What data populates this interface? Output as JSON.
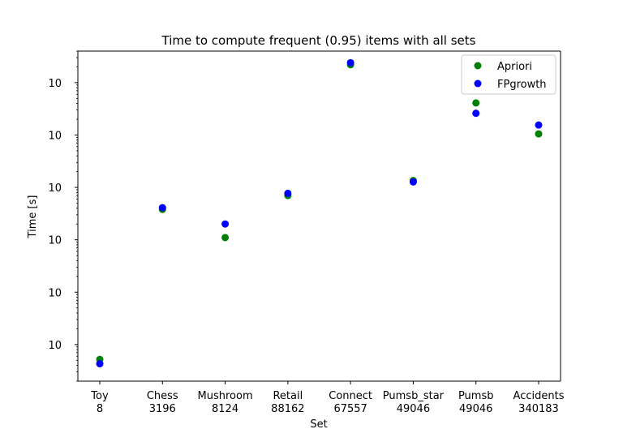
{
  "chart_data": {
    "type": "scatter",
    "title": "Time to compute frequent (0.95) items with all sets",
    "xlabel": "Set",
    "ylabel": "Time [s]",
    "yscale": "log",
    "ylim": [
      0.0002,
      400
    ],
    "y_ticks": [
      {
        "value": 0.001,
        "base": "10",
        "exp": "−3"
      },
      {
        "value": 0.01,
        "base": "10",
        "exp": "−2"
      },
      {
        "value": 0.1,
        "base": "10",
        "exp": "−1"
      },
      {
        "value": 1,
        "base": "10",
        "exp": "0"
      },
      {
        "value": 10,
        "base": "10",
        "exp": "1"
      },
      {
        "value": 100,
        "base": "10",
        "exp": "2"
      }
    ],
    "categories": [
      {
        "name": "Toy",
        "size": "8"
      },
      {
        "name": "Chess",
        "size": "3196"
      },
      {
        "name": "Mushroom",
        "size": "8124"
      },
      {
        "name": "Retail",
        "size": "88162"
      },
      {
        "name": "Connect",
        "size": "67557"
      },
      {
        "name": "Pumsb_star",
        "size": "49046"
      },
      {
        "name": "Pumsb",
        "size": "49046"
      },
      {
        "name": "Accidents",
        "size": "340183"
      }
    ],
    "series": [
      {
        "name": "Apriori",
        "color": "#008000",
        "values": [
          0.00052,
          0.38,
          0.11,
          0.7,
          220,
          1.35,
          41,
          10.5
        ]
      },
      {
        "name": "FPgrowth",
        "color": "#0000ff",
        "values": [
          0.00043,
          0.41,
          0.2,
          0.77,
          240,
          1.27,
          26,
          15.5
        ]
      }
    ],
    "grid": false,
    "legend_position": "top-right"
  }
}
